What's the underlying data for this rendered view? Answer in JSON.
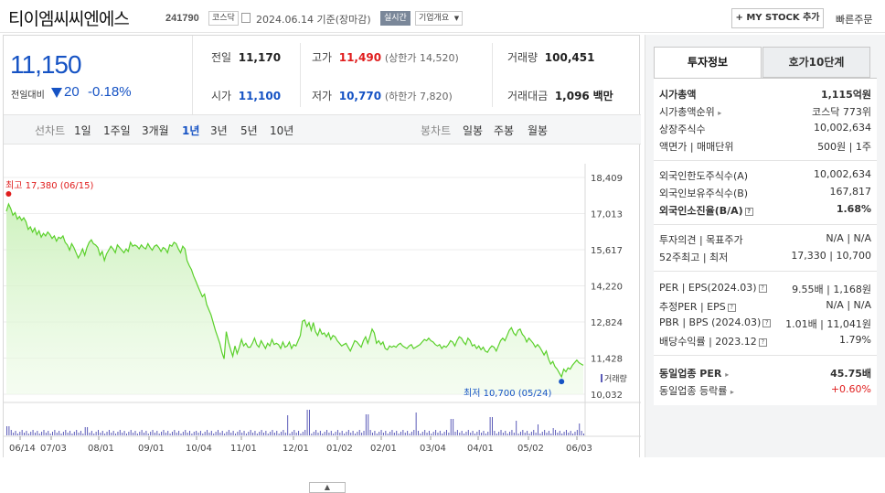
{
  "header": {
    "company_name": "티이엠씨씨엔에스",
    "code": "241790",
    "market": "코스닥",
    "date": "2024.06.14",
    "basis": "기준(장마감)",
    "realtime": "실시간",
    "overview": "기업개요",
    "my_stock": "+ MY STOCK 추가",
    "buy": "빠른주문"
  },
  "price": {
    "current": "11,150",
    "prev_label": "전일대비",
    "change": "20",
    "change_pct": "-0.18%"
  },
  "stats": {
    "prev_label": "전일",
    "prev": "11,170",
    "high_label": "고가",
    "high": "11,490",
    "upper_limit": "(상한가 14,520)",
    "volume_label": "거래량",
    "volume": "100,451",
    "open_label": "시가",
    "open": "11,100",
    "low_label": "저가",
    "low": "10,770",
    "lower_limit": "(하한가 7,820)",
    "amount_label": "거래대금",
    "amount": "1,096",
    "amount_unit": "백만"
  },
  "chart_tabs": {
    "line_label": "선차트",
    "periods": [
      "1일",
      "1주일",
      "3개월",
      "1년",
      "3년",
      "5년",
      "10년"
    ],
    "active": "1년",
    "candle_label": "봉차트",
    "candles": [
      "일봉",
      "주봉",
      "월봉"
    ]
  },
  "chart_data": {
    "type": "area",
    "yticks": [
      "18,409",
      "17,013",
      "15,617",
      "14,220",
      "12,824",
      "11,428",
      "10,032"
    ],
    "ylim": [
      10032,
      18409
    ],
    "xtick_labels": [
      "06/14",
      "07/03",
      "08/01",
      "09/01",
      "10/04",
      "11/01",
      "12/01",
      "01/02",
      "02/01",
      "03/04",
      "04/01",
      "05/02",
      "06/03"
    ],
    "high_label": "최고 17,380 (06/15)",
    "low_label": "최저 10,700 (05/24)",
    "volume_label": "거래량",
    "price_series": [
      17100,
      17380,
      17200,
      16950,
      17050,
      16800,
      16900,
      16750,
      16850,
      16700,
      16400,
      16500,
      16300,
      16450,
      16200,
      16350,
      16100,
      16250,
      16150,
      16300,
      16200,
      16050,
      16150,
      15950,
      16100,
      16050,
      16150,
      15900,
      15800,
      15600,
      15850,
      15700,
      15500,
      15300,
      15450,
      15650,
      15400,
      15700,
      15900,
      16000,
      15850,
      15800,
      15700,
      15400,
      15550,
      15200,
      15450,
      15600,
      15750,
      15650,
      15500,
      15800,
      15700,
      15600,
      15500,
      15650,
      15550,
      15900,
      15750,
      15800,
      15750,
      15650,
      15800,
      15700,
      15650,
      15850,
      15700,
      15600,
      15750,
      15800,
      15700,
      15550,
      15700,
      15650,
      15500,
      15800,
      15750,
      15900,
      15850,
      15650,
      15500,
      15750,
      15650,
      15200,
      15000,
      14850,
      14600,
      14400,
      14200,
      14000,
      13800,
      13900,
      13500,
      13300,
      13100,
      12800,
      12500,
      12250,
      12000,
      11650,
      11400,
      12450,
      12050,
      11750,
      11500,
      11900,
      11600,
      11850,
      12150,
      11900,
      12000,
      11850,
      11850,
      12000,
      12200,
      11950,
      11850,
      12100,
      11950,
      11800,
      12000,
      11900,
      12150,
      11950,
      12000,
      11950,
      11800,
      12050,
      11850,
      11900,
      12050,
      11800,
      11950,
      11900,
      12100,
      12300,
      12850,
      12900,
      12650,
      12800,
      12500,
      12800,
      12450,
      12300,
      12550,
      12350,
      12400,
      12250,
      12400,
      12150,
      12300,
      12250,
      12100,
      12000,
      11900,
      11950,
      12000,
      11850,
      11700,
      11900,
      12100,
      12050,
      11950,
      11850,
      12100,
      12250,
      12000,
      12250,
      12550,
      12400,
      12000,
      12100,
      11950,
      12050,
      11800,
      11750,
      11900,
      11850,
      11900,
      11850,
      11950,
      12000,
      11900,
      11850,
      11800,
      11900,
      11950,
      11800,
      11850,
      11900,
      11950,
      12050,
      12150,
      12100,
      12200,
      12100,
      12050,
      11950,
      11900,
      11950,
      11800,
      11900,
      11850,
      11950,
      12100,
      12050,
      11900,
      12100,
      12250,
      12200,
      12050,
      11950,
      12200,
      12100,
      11900,
      11950,
      11800,
      11900,
      11750,
      11850,
      11700,
      11650,
      11800,
      11900,
      11850,
      11700,
      11900,
      12100,
      12200,
      12100,
      12300,
      12500,
      12600,
      12400,
      12300,
      12500,
      12550,
      12350,
      12250,
      12050,
      12200,
      12100,
      12000,
      11850,
      11950,
      11850,
      11700,
      11550,
      11700,
      11400,
      11200,
      11300,
      11100,
      11000,
      10850,
      10700,
      11000,
      10900,
      11050,
      11000,
      11150,
      11250,
      11350,
      11250,
      11200,
      11150
    ]
  },
  "invest_info": {
    "tab_active": "투자정보",
    "tab_other": "호가10단계",
    "market_cap_label": "시가총액",
    "market_cap": "1,115억원",
    "rank_label": "시가총액순위",
    "rank": "코스닥 773위",
    "shares_label": "상장주식수",
    "shares": "10,002,634",
    "par_label": "액면가 | 매매단위",
    "par": "500원 | 1주",
    "foreign_limit_label": "외국인한도주식수(A)",
    "foreign_limit": "10,002,634",
    "foreign_hold_label": "외국인보유주식수(B)",
    "foreign_hold": "167,817",
    "foreign_rate_label": "외국인소진율(B/A)",
    "foreign_rate": "1.68%",
    "opinion_label": "투자의견 | 목표주가",
    "opinion": "N/A | N/A",
    "week52_label": "52주최고 | 최저",
    "week52": "17,330 | 10,700",
    "per_label": "PER | EPS(2024.03)",
    "per": "9.55배 | 1,168원",
    "est_per_label": "추정PER | EPS",
    "est_per": "N/A | N/A",
    "pbr_label": "PBR | BPS (2024.03)",
    "pbr": "1.01배 | 11,041원",
    "div_label": "배당수익률 | 2023.12",
    "div": "1.79%",
    "ind_per_label": "동일업종 PER",
    "ind_per": "45.75배",
    "ind_rate_label": "동일업종 등락률",
    "ind_rate": "+0.60%"
  }
}
